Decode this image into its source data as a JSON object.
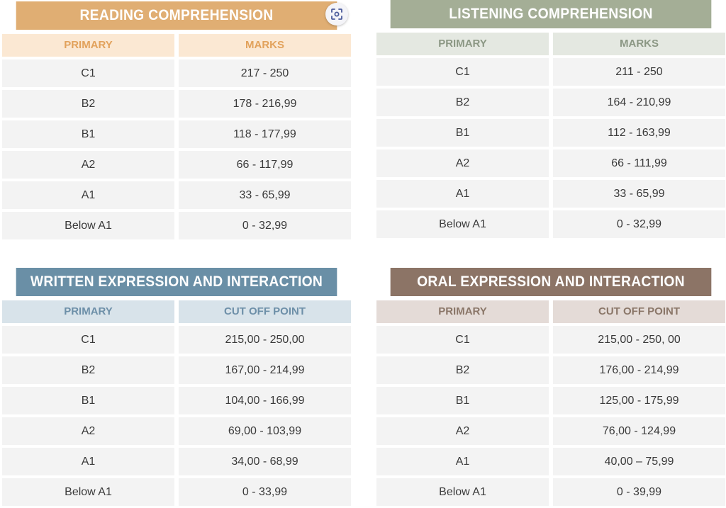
{
  "colors": {
    "reading": "#e0ae73",
    "reading_head_bg": "#fbe8d3",
    "reading_head_text": "#e2a25c",
    "listening": "#a4ae96",
    "listening_head_bg": "#e4e8e1",
    "listening_head_text": "#8b9784",
    "written": "#6a8fa6",
    "written_head_bg": "#d8e3ea",
    "written_head_text": "#6d8fa8",
    "oral": "#8c7466",
    "oral_head_bg": "#e4dbd7",
    "oral_head_text": "#8a7668",
    "cell_bg": "#f3f3f3",
    "cell_text": "#3a3a3a"
  },
  "lens_icon": "google-lens-icon",
  "tables": [
    {
      "title": "READING COMPREHENSION",
      "col1": "PRIMARY",
      "col2": "MARKS",
      "rows": [
        {
          "level": "C1",
          "range": "217 - 250"
        },
        {
          "level": "B2",
          "range": "178 - 216,99"
        },
        {
          "level": "B1",
          "range": "118 - 177,99"
        },
        {
          "level": "A2",
          "range": "66 - 117,99"
        },
        {
          "level": "A1",
          "range": "33 - 65,99"
        },
        {
          "level": "Below A1",
          "range": "0 - 32,99"
        }
      ]
    },
    {
      "title": "LISTENING COMPREHENSION",
      "col1": "PRIMARY",
      "col2": "MARKS",
      "rows": [
        {
          "level": "C1",
          "range": "211 - 250"
        },
        {
          "level": "B2",
          "range": "164 - 210,99"
        },
        {
          "level": "B1",
          "range": "112 - 163,99"
        },
        {
          "level": "A2",
          "range": "66 - 111,99"
        },
        {
          "level": "A1",
          "range": "33 - 65,99"
        },
        {
          "level": "Below A1",
          "range": "0 - 32,99"
        }
      ]
    },
    {
      "title": "WRITTEN EXPRESSION AND INTERACTION",
      "col1": "PRIMARY",
      "col2": "CUT OFF POINT",
      "rows": [
        {
          "level": "C1",
          "range": "215,00 - 250,00"
        },
        {
          "level": "B2",
          "range": "167,00 - 214,99"
        },
        {
          "level": "B1",
          "range": "104,00 - 166,99"
        },
        {
          "level": "A2",
          "range": "69,00 - 103,99"
        },
        {
          "level": "A1",
          "range": "34,00 - 68,99"
        },
        {
          "level": "Below A1",
          "range": "0 - 33,99"
        }
      ]
    },
    {
      "title": "ORAL EXPRESSION AND INTERACTION",
      "col1": "PRIMARY",
      "col2": "CUT OFF POINT",
      "rows": [
        {
          "level": "C1",
          "range": "215,00 - 250, 00"
        },
        {
          "level": "B2",
          "range": "176,00 - 214,99"
        },
        {
          "level": "B1",
          "range": "125,00 - 175,99"
        },
        {
          "level": "A2",
          "range": "76,00 - 124,99"
        },
        {
          "level": "A1",
          "range": "40,00 – 75,99"
        },
        {
          "level": "Below A1",
          "range": "0 - 39,99"
        }
      ]
    }
  ]
}
